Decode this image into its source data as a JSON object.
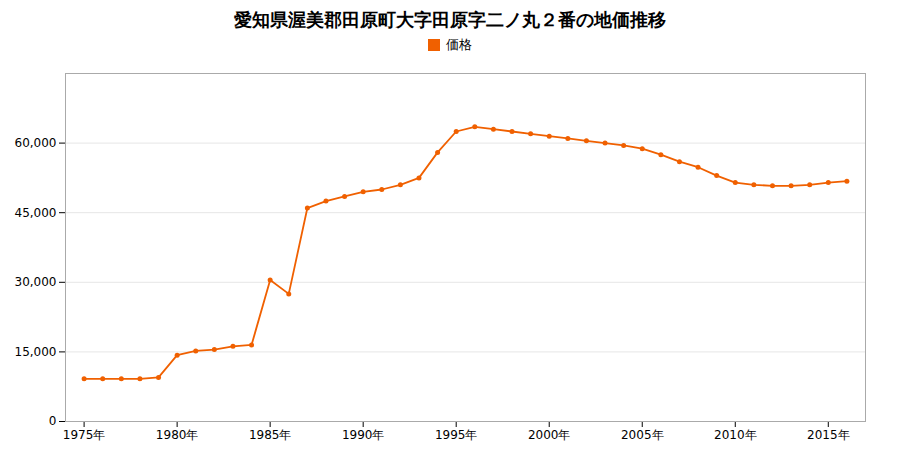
{
  "chart_data": {
    "type": "line",
    "title": "愛知県渥美郡田原町大字田原字二ノ丸２番の地価推移",
    "x": [
      1975,
      1976,
      1977,
      1978,
      1979,
      1980,
      1981,
      1982,
      1983,
      1984,
      1985,
      1986,
      1987,
      1988,
      1989,
      1990,
      1991,
      1992,
      1993,
      1994,
      1995,
      1996,
      1997,
      1998,
      1999,
      2000,
      2001,
      2002,
      2003,
      2004,
      2005,
      2006,
      2007,
      2008,
      2009,
      2010,
      2011,
      2012,
      2013,
      2014,
      2015,
      2016
    ],
    "series": [
      {
        "name": "価格",
        "color": "#f06000",
        "marker": "circle",
        "values": [
          9200,
          9200,
          9200,
          9200,
          9500,
          14300,
          15200,
          15500,
          16200,
          16500,
          30500,
          27500,
          46000,
          47500,
          48500,
          49500,
          50000,
          51000,
          52500,
          58000,
          62500,
          63500,
          63000,
          62500,
          62000,
          61500,
          61000,
          60500,
          60000,
          59500,
          58800,
          57500,
          56000,
          54800,
          53000,
          51500,
          51000,
          50800,
          50800,
          51000,
          51500,
          51800
        ]
      }
    ],
    "xlim": [
      1974,
      2017
    ],
    "xticks": [
      {
        "value": 1975,
        "label": "1975年"
      },
      {
        "value": 1980,
        "label": "1980年"
      },
      {
        "value": 1985,
        "label": "1985年"
      },
      {
        "value": 1990,
        "label": "1990年"
      },
      {
        "value": 1995,
        "label": "1995年"
      },
      {
        "value": 2000,
        "label": "2000年"
      },
      {
        "value": 2005,
        "label": "2005年"
      },
      {
        "value": 2010,
        "label": "2010年"
      },
      {
        "value": 2015,
        "label": "2015年"
      }
    ],
    "ylim": [
      0,
      75000
    ],
    "yticks": [
      0,
      {
        "value": 15000,
        "label": "15,000"
      },
      {
        "value": 30000,
        "label": "30,000"
      },
      {
        "value": 45000,
        "label": "45,000"
      },
      {
        "value": 60000,
        "label": "60,000"
      }
    ],
    "grid": true,
    "legend": "top"
  }
}
